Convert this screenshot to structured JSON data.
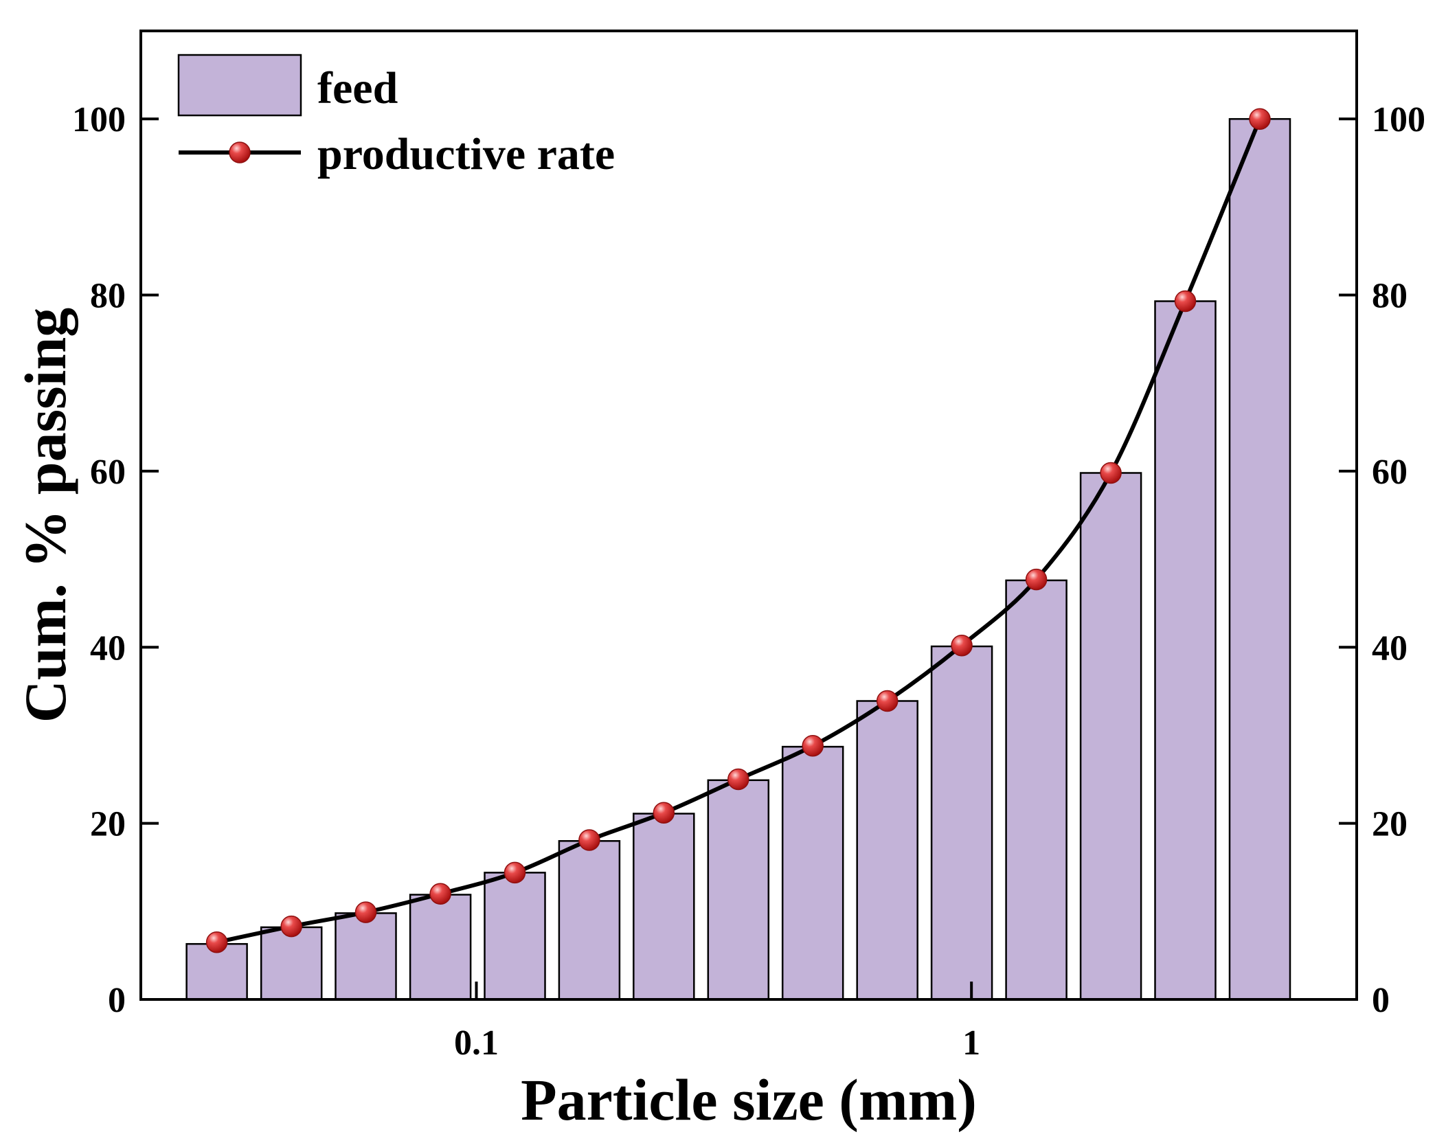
{
  "chart_data": {
    "type": "bar",
    "xlabel": "Particle size (mm)",
    "ylabel": "Cum. % passing",
    "x_scale": "log",
    "xlim": [
      0.021,
      6.0
    ],
    "ylim": [
      0,
      110
    ],
    "x_ticks": [
      {
        "value": 0.1,
        "label": "0.1"
      },
      {
        "value": 1,
        "label": "1"
      }
    ],
    "y_ticks": [
      {
        "value": 0,
        "label": "0"
      },
      {
        "value": 20,
        "label": "20"
      },
      {
        "value": 40,
        "label": "40"
      },
      {
        "value": 60,
        "label": "60"
      },
      {
        "value": 80,
        "label": "80"
      },
      {
        "value": 100,
        "label": "100"
      }
    ],
    "right_axis_ticks": [
      "0",
      "20",
      "40",
      "60",
      "80",
      "100"
    ],
    "x": [
      0.0299,
      0.0423,
      0.0598,
      0.0846,
      0.1196,
      0.1691,
      0.2391,
      0.3381,
      0.4781,
      0.6761,
      0.956,
      1.352,
      1.912,
      2.704,
      3.824
    ],
    "series": [
      {
        "name": "feed",
        "kind": "bar",
        "color": "#c3b3d8",
        "values": [
          6.3,
          8.2,
          9.8,
          11.9,
          14.4,
          18.0,
          21.1,
          24.9,
          28.7,
          33.9,
          40.1,
          47.6,
          59.8,
          79.3,
          100.0
        ]
      },
      {
        "name": "productive rate",
        "kind": "line",
        "color": "#000000",
        "marker_color": "#d42a2a",
        "values": [
          6.5,
          8.3,
          9.9,
          12.0,
          14.4,
          18.1,
          21.2,
          25.0,
          28.8,
          33.9,
          40.2,
          47.7,
          59.8,
          79.3,
          100.0
        ]
      }
    ],
    "legend": {
      "position": "top-left",
      "entries": [
        {
          "label": "feed"
        },
        {
          "label": "productive rate"
        }
      ]
    },
    "grid": false
  }
}
